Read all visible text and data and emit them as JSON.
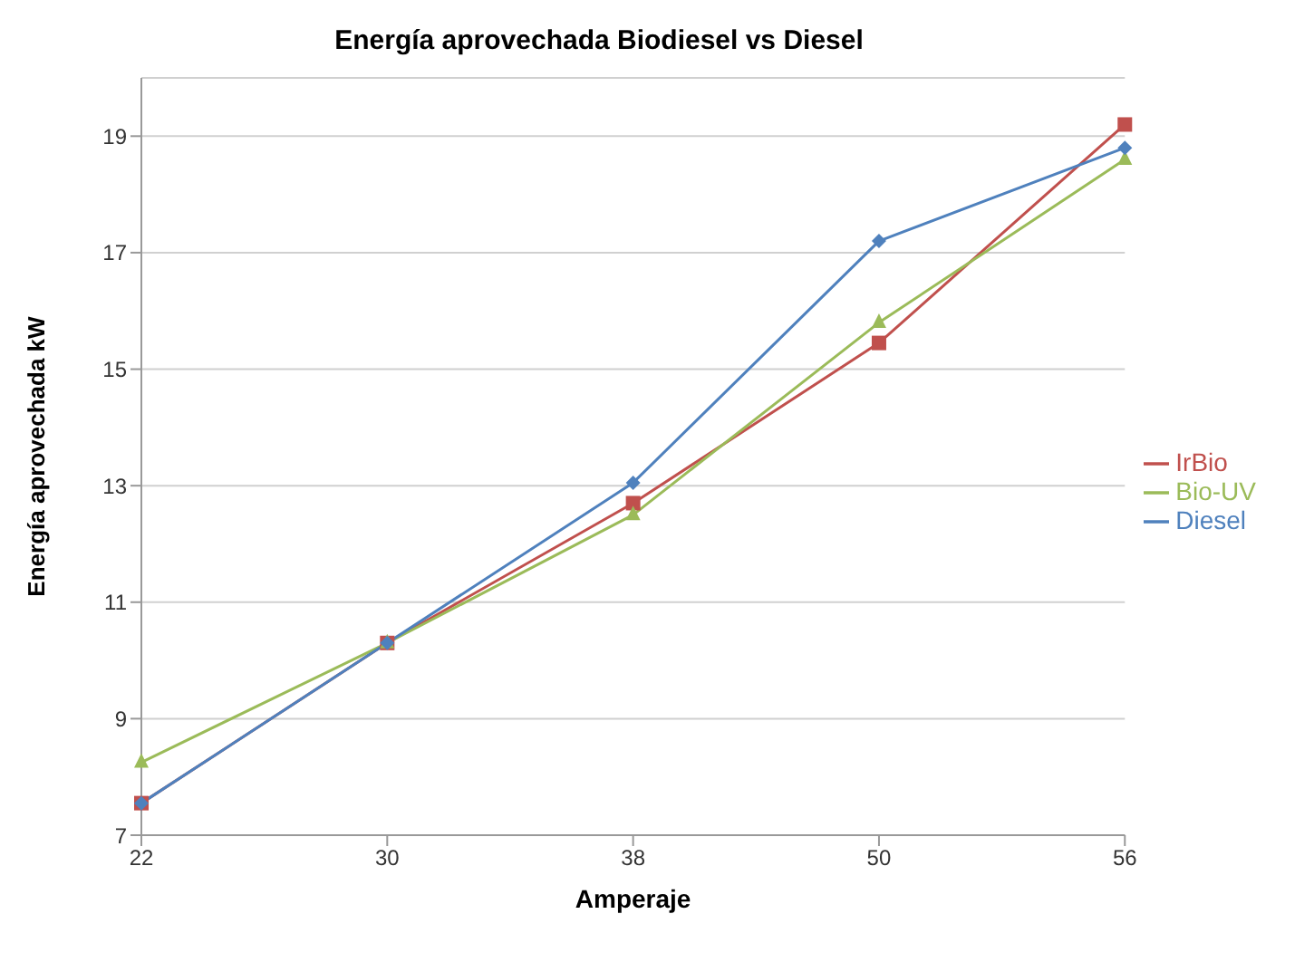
{
  "chart_data": {
    "type": "line",
    "title": "Energía aprovechada Biodiesel vs Diesel",
    "xlabel": "Amperaje",
    "ylabel": "Energía aprovechada   kW",
    "categories": [
      "22",
      "30",
      "38",
      "50",
      "56"
    ],
    "series": [
      {
        "name": "IrBio",
        "color": "#c0504d",
        "marker": "square",
        "values": [
          7.55,
          10.3,
          12.7,
          15.45,
          19.2
        ]
      },
      {
        "name": "Bio-UV",
        "color": "#9bbb59",
        "marker": "triangle",
        "values": [
          8.25,
          10.3,
          12.5,
          15.8,
          18.6
        ]
      },
      {
        "name": "Diesel",
        "color": "#4f81bd",
        "marker": "diamond",
        "values": [
          7.55,
          10.3,
          13.05,
          17.2,
          18.8
        ]
      }
    ],
    "ylim": [
      7,
      20
    ],
    "yticks": [
      7,
      9,
      11,
      13,
      15,
      17,
      19
    ],
    "grid": "y",
    "legend": "right"
  }
}
